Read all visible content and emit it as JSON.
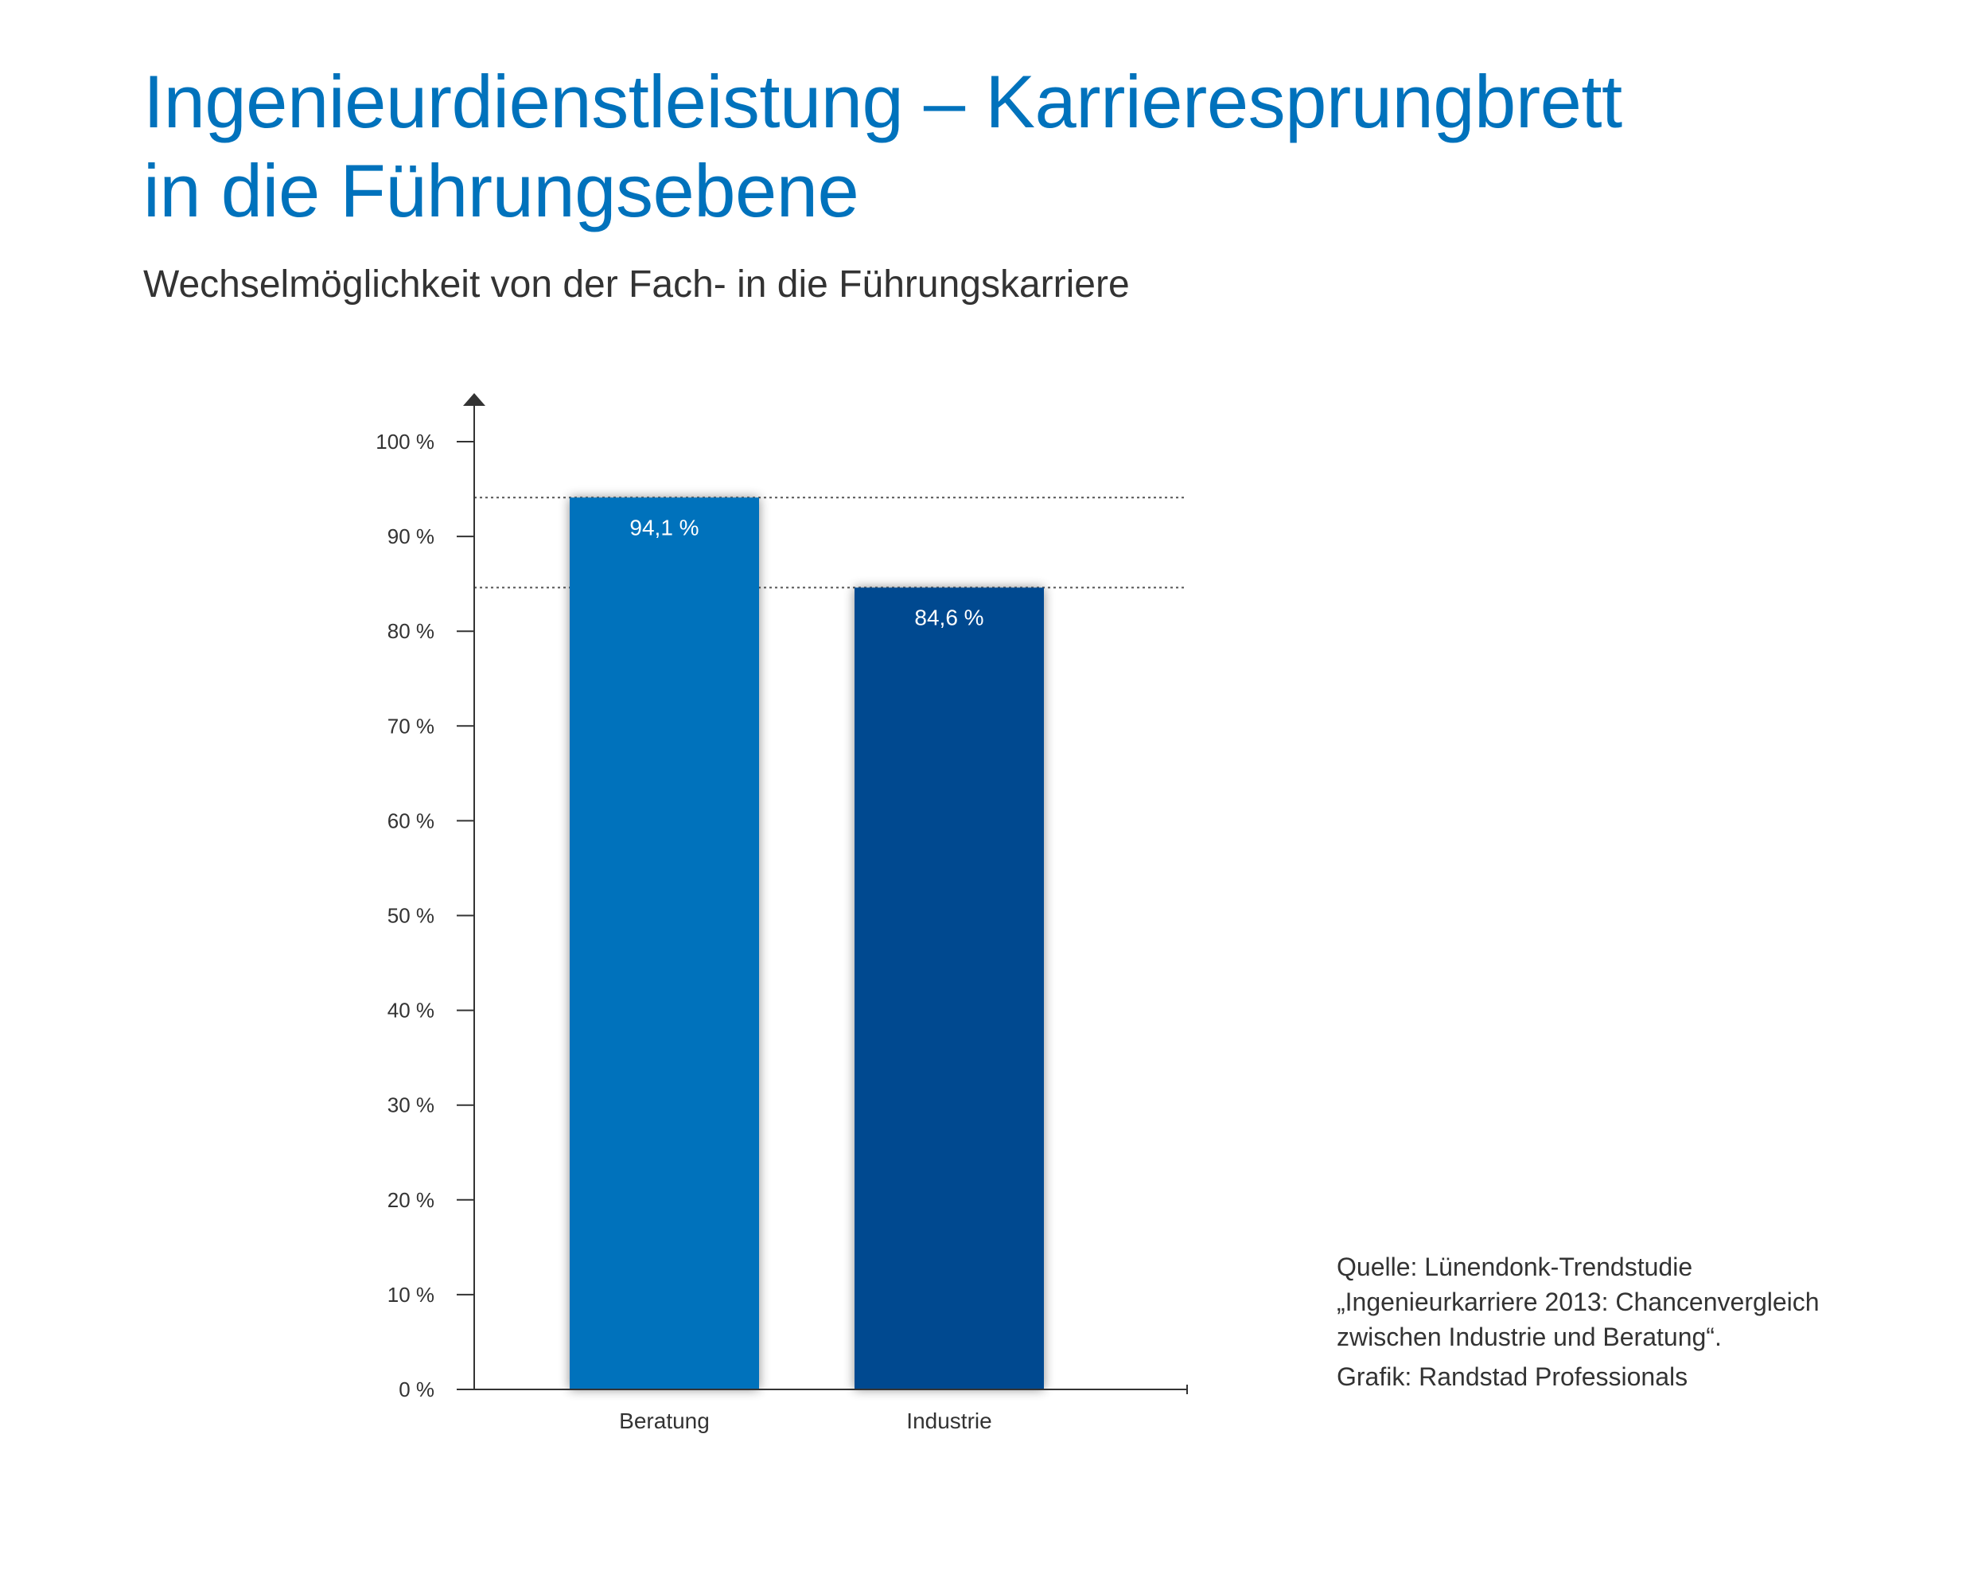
{
  "header": {
    "title_line1": "Ingenieurdienstleistung – Karrieresprungbrett",
    "title_line2": "in die Führungsebene",
    "subtitle": "Wechselmöglichkeit von der Fach- in die Führungskarriere"
  },
  "chart_data": {
    "type": "bar",
    "categories": [
      "Beratung",
      "Industrie"
    ],
    "values": [
      94.1,
      84.6
    ],
    "value_labels": [
      "94,1 %",
      "84,6 %"
    ],
    "colors": [
      "#0072bc",
      "#004990"
    ],
    "ylim": [
      0,
      100
    ],
    "yticks": [
      0,
      10,
      20,
      30,
      40,
      50,
      60,
      70,
      80,
      90,
      100
    ],
    "ytick_labels": [
      "0 %",
      "10 %",
      "20 %",
      "30 %",
      "40 %",
      "50 %",
      "60 %",
      "70 %",
      "80 %",
      "90 %",
      "100 %"
    ],
    "reference_lines": [
      94.1,
      84.6
    ],
    "grid": false
  },
  "source": {
    "line1": "Quelle: Lünendonk-Trendstudie",
    "line2": "„Ingenieurkarriere 2013: Chancenvergleich",
    "line3": "zwischen Industrie und Beratung“.",
    "credit": "Grafik: Randstad Professionals"
  }
}
